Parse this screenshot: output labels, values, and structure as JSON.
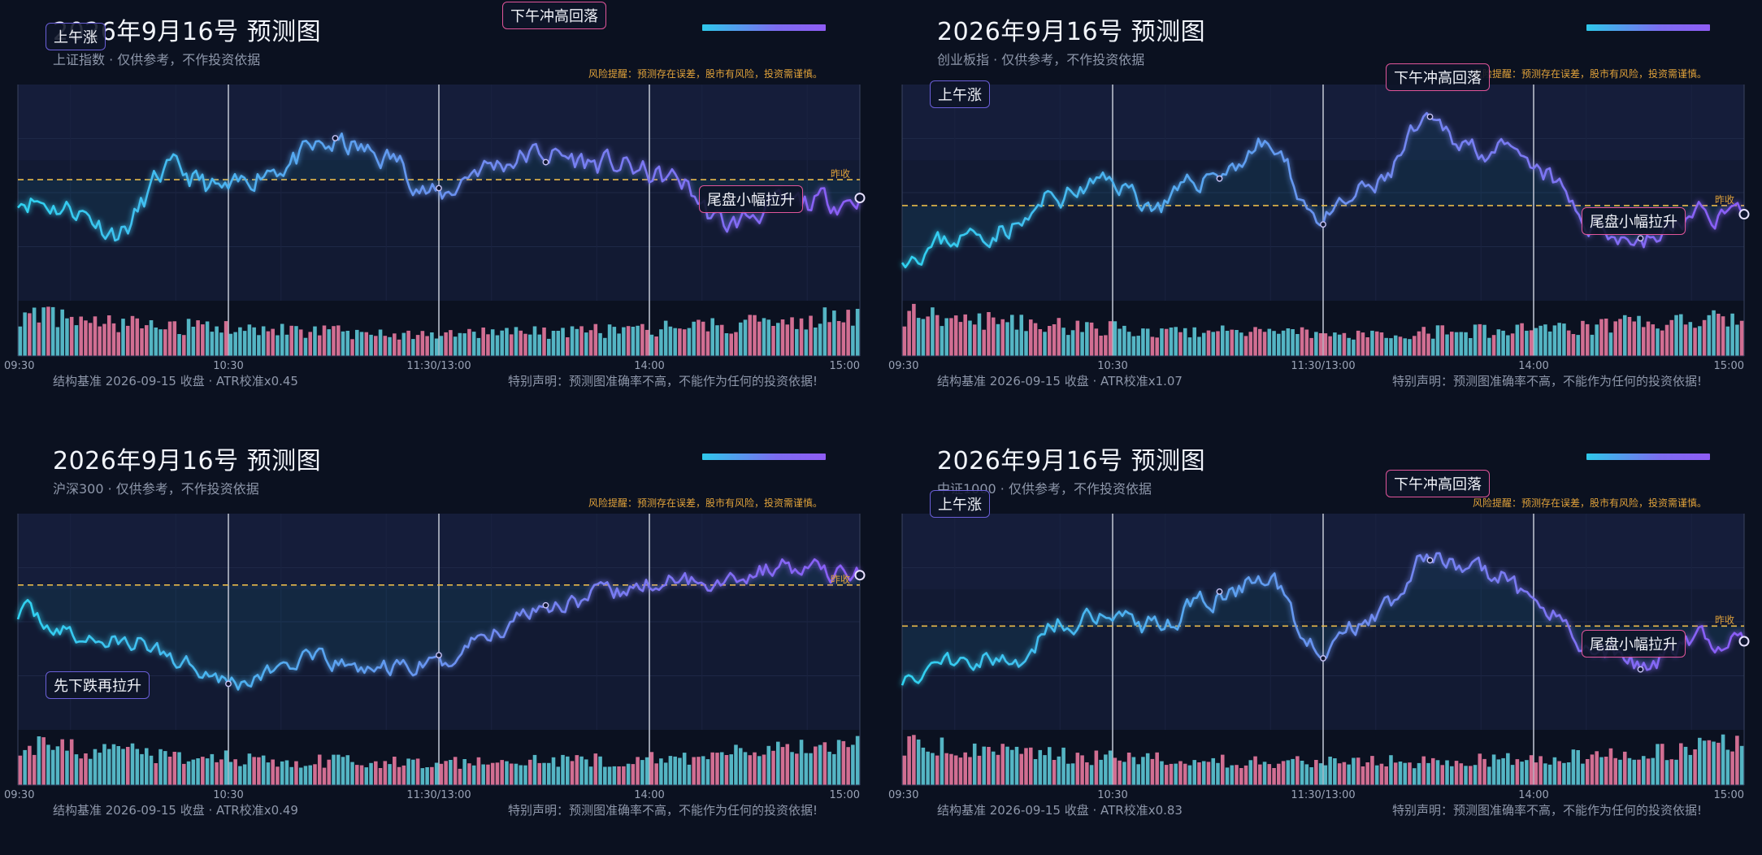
{
  "colors": {
    "cyan": "#2fd2f0",
    "purple": "#8b5cf6",
    "prev_close": "#e8b94a",
    "up_bar": "#e7799f",
    "down_bar": "#5cc8d6"
  },
  "chart_data": [
    {
      "type": "line",
      "title": "2026年9月16号 预测图",
      "subtitle": "上证指数 · 仅供参考，不作投资依据",
      "risk": "风险提醒：预测存在误差，股市有风险，投资需谨慎。",
      "prev_close_label": "昨收",
      "x_ticks": [
        "09:30",
        "10:30",
        "11:30/13:00",
        "14:00",
        "15:00"
      ],
      "footer_left": "结构基准 2026-09-15 收盘 · ATR校准x0.45",
      "footer_right": "特别声明：预测图准确率不高，不能作为任何的投资依据!",
      "annotations": [
        {
          "text": "上午涨",
          "style": "up",
          "left": 56,
          "top": 28
        },
        {
          "text": "下午冲高回落",
          "style": "pk",
          "left": 618,
          "top": 2
        },
        {
          "text": "尾盘小幅拉升",
          "style": "pk",
          "left": 860,
          "top": 228
        }
      ],
      "baseline": 0.56,
      "segments": [
        {
          "t": 0,
          "v": 0.48
        },
        {
          "t": 0.06,
          "v": 0.43
        },
        {
          "t": 0.12,
          "v": 0.32
        },
        {
          "t": 0.18,
          "v": 0.6
        },
        {
          "t": 0.25,
          "v": 0.5
        },
        {
          "t": 0.3,
          "v": 0.62
        },
        {
          "t": 0.38,
          "v": 0.72
        },
        {
          "t": 0.44,
          "v": 0.66
        },
        {
          "t": 0.5,
          "v": 0.48
        },
        {
          "t": 0.55,
          "v": 0.62
        },
        {
          "t": 0.62,
          "v": 0.68
        },
        {
          "t": 0.7,
          "v": 0.63
        },
        {
          "t": 0.78,
          "v": 0.56
        },
        {
          "t": 0.84,
          "v": 0.35
        },
        {
          "t": 0.9,
          "v": 0.44
        },
        {
          "t": 1.0,
          "v": 0.47
        }
      ],
      "markers": [
        0.375,
        0.5,
        0.625,
        1.0
      ],
      "seed": 11,
      "noise": 0.045
    },
    {
      "type": "line",
      "title": "2026年9月16号 预测图",
      "subtitle": "创业板指 · 仅供参考，不作投资依据",
      "risk": "风险提醒：预测存在误差，股市有风险，投资需谨慎。",
      "prev_close_label": "昨收",
      "x_ticks": [
        "09:30",
        "10:30",
        "11:30/13:00",
        "14:00",
        "15:00"
      ],
      "footer_left": "结构基准 2026-09-15 收盘 · ATR校准x1.07",
      "footer_right": "特别声明：预测图准确率不高，不能作为任何的投资依据!",
      "annotations": [
        {
          "text": "上午涨",
          "style": "up",
          "left": 1144,
          "top": 99
        },
        {
          "text": "下午冲高回落",
          "style": "pk",
          "left": 1705,
          "top": 78
        },
        {
          "text": "尾盘小幅拉升",
          "style": "pk",
          "left": 1946,
          "top": 255
        }
      ],
      "baseline": 0.44,
      "segments": [
        {
          "t": 0,
          "v": 0.22
        },
        {
          "t": 0.08,
          "v": 0.3
        },
        {
          "t": 0.14,
          "v": 0.35
        },
        {
          "t": 0.18,
          "v": 0.48
        },
        {
          "t": 0.25,
          "v": 0.55
        },
        {
          "t": 0.3,
          "v": 0.44
        },
        {
          "t": 0.38,
          "v": 0.6
        },
        {
          "t": 0.43,
          "v": 0.72
        },
        {
          "t": 0.5,
          "v": 0.38
        },
        {
          "t": 0.56,
          "v": 0.52
        },
        {
          "t": 0.62,
          "v": 0.8
        },
        {
          "t": 0.7,
          "v": 0.7
        },
        {
          "t": 0.76,
          "v": 0.58
        },
        {
          "t": 0.82,
          "v": 0.35
        },
        {
          "t": 0.88,
          "v": 0.28
        },
        {
          "t": 0.95,
          "v": 0.4
        },
        {
          "t": 1.0,
          "v": 0.42
        }
      ],
      "markers": [
        0.375,
        0.5,
        0.625,
        0.875,
        1.0
      ],
      "seed": 23,
      "noise": 0.04
    },
    {
      "type": "line",
      "title": "2026年9月16号 预测图",
      "subtitle": "沪深300 · 仅供参考，不作投资依据",
      "risk": "风险提醒：预测存在误差，股市有风险，投资需谨慎。",
      "prev_close_label": "昨收",
      "x_ticks": [
        "09:30",
        "10:30",
        "11:30/13:00",
        "14:00",
        "15:00"
      ],
      "footer_left": "结构基准 2026-09-15 收盘 · ATR校准x0.49",
      "footer_right": "特别声明：预测图准确率不高，不能作为任何的投资依据!",
      "annotations": [
        {
          "text": "先下跌再拉升",
          "style": "dn",
          "left": 56,
          "top": 826
        }
      ],
      "baseline": 0.67,
      "segments": [
        {
          "t": 0,
          "v": 0.55
        },
        {
          "t": 0.08,
          "v": 0.42
        },
        {
          "t": 0.14,
          "v": 0.4
        },
        {
          "t": 0.2,
          "v": 0.32
        },
        {
          "t": 0.26,
          "v": 0.22
        },
        {
          "t": 0.34,
          "v": 0.32
        },
        {
          "t": 0.42,
          "v": 0.28
        },
        {
          "t": 0.5,
          "v": 0.3
        },
        {
          "t": 0.56,
          "v": 0.45
        },
        {
          "t": 0.62,
          "v": 0.58
        },
        {
          "t": 0.7,
          "v": 0.62
        },
        {
          "t": 0.76,
          "v": 0.68
        },
        {
          "t": 0.84,
          "v": 0.7
        },
        {
          "t": 0.9,
          "v": 0.75
        },
        {
          "t": 1.0,
          "v": 0.72
        }
      ],
      "markers": [
        0.25,
        0.5,
        0.625,
        1.0
      ],
      "seed": 37,
      "noise": 0.035
    },
    {
      "type": "line",
      "title": "2026年9月16号 预测图",
      "subtitle": "中证1000 · 仅供参考，不作投资依据",
      "risk": "风险提醒：预测存在误差，股市有风险，投资需谨慎。",
      "prev_close_label": "昨收",
      "x_ticks": [
        "09:30",
        "10:30",
        "11:30/13:00",
        "14:00",
        "15:00"
      ],
      "footer_left": "结构基准 2026-09-15 收盘 · ATR校准x0.83",
      "footer_right": "特别声明：预测图准确率不高，不能作为任何的投资依据!",
      "annotations": [
        {
          "text": "上午涨",
          "style": "up",
          "left": 1144,
          "top": 603
        },
        {
          "text": "下午冲高回落",
          "style": "pk",
          "left": 1705,
          "top": 578
        },
        {
          "text": "尾盘小幅拉升",
          "style": "pk",
          "left": 1946,
          "top": 775
        }
      ],
      "baseline": 0.48,
      "segments": [
        {
          "t": 0,
          "v": 0.25
        },
        {
          "t": 0.08,
          "v": 0.35
        },
        {
          "t": 0.14,
          "v": 0.3
        },
        {
          "t": 0.18,
          "v": 0.5
        },
        {
          "t": 0.25,
          "v": 0.55
        },
        {
          "t": 0.3,
          "v": 0.48
        },
        {
          "t": 0.38,
          "v": 0.62
        },
        {
          "t": 0.43,
          "v": 0.7
        },
        {
          "t": 0.5,
          "v": 0.38
        },
        {
          "t": 0.56,
          "v": 0.52
        },
        {
          "t": 0.62,
          "v": 0.78
        },
        {
          "t": 0.7,
          "v": 0.72
        },
        {
          "t": 0.76,
          "v": 0.58
        },
        {
          "t": 0.82,
          "v": 0.38
        },
        {
          "t": 0.88,
          "v": 0.3
        },
        {
          "t": 0.95,
          "v": 0.42
        },
        {
          "t": 1.0,
          "v": 0.43
        }
      ],
      "markers": [
        0.375,
        0.5,
        0.625,
        0.875,
        1.0
      ],
      "seed": 51,
      "noise": 0.04
    }
  ]
}
